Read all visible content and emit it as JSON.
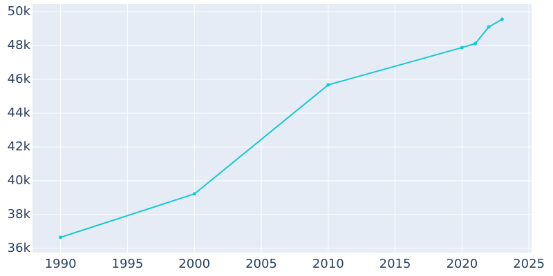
{
  "chart_data": {
    "type": "line",
    "x": [
      1990,
      2000,
      2010,
      2020,
      2021,
      2022,
      2023
    ],
    "series": [
      {
        "color": "#17c9cc",
        "values": [
          36650,
          39220,
          45670,
          47880,
          48120,
          49100,
          49550
        ]
      }
    ],
    "xlim": [
      1987.9,
      2025.2
    ],
    "xticks": [
      1990,
      1995,
      2000,
      2005,
      2010,
      2015,
      2020,
      2025
    ],
    "ylim": [
      35750,
      50450
    ],
    "yticks": [
      {
        "value": 36000,
        "label": "36k"
      },
      {
        "value": 38000,
        "label": "38k"
      },
      {
        "value": 40000,
        "label": "40k"
      },
      {
        "value": 42000,
        "label": "42k"
      },
      {
        "value": 44000,
        "label": "44k"
      },
      {
        "value": 46000,
        "label": "46k"
      },
      {
        "value": 48000,
        "label": "48k"
      },
      {
        "value": 50000,
        "label": "50k"
      }
    ],
    "grid": true,
    "background": "#e5ecf6"
  }
}
